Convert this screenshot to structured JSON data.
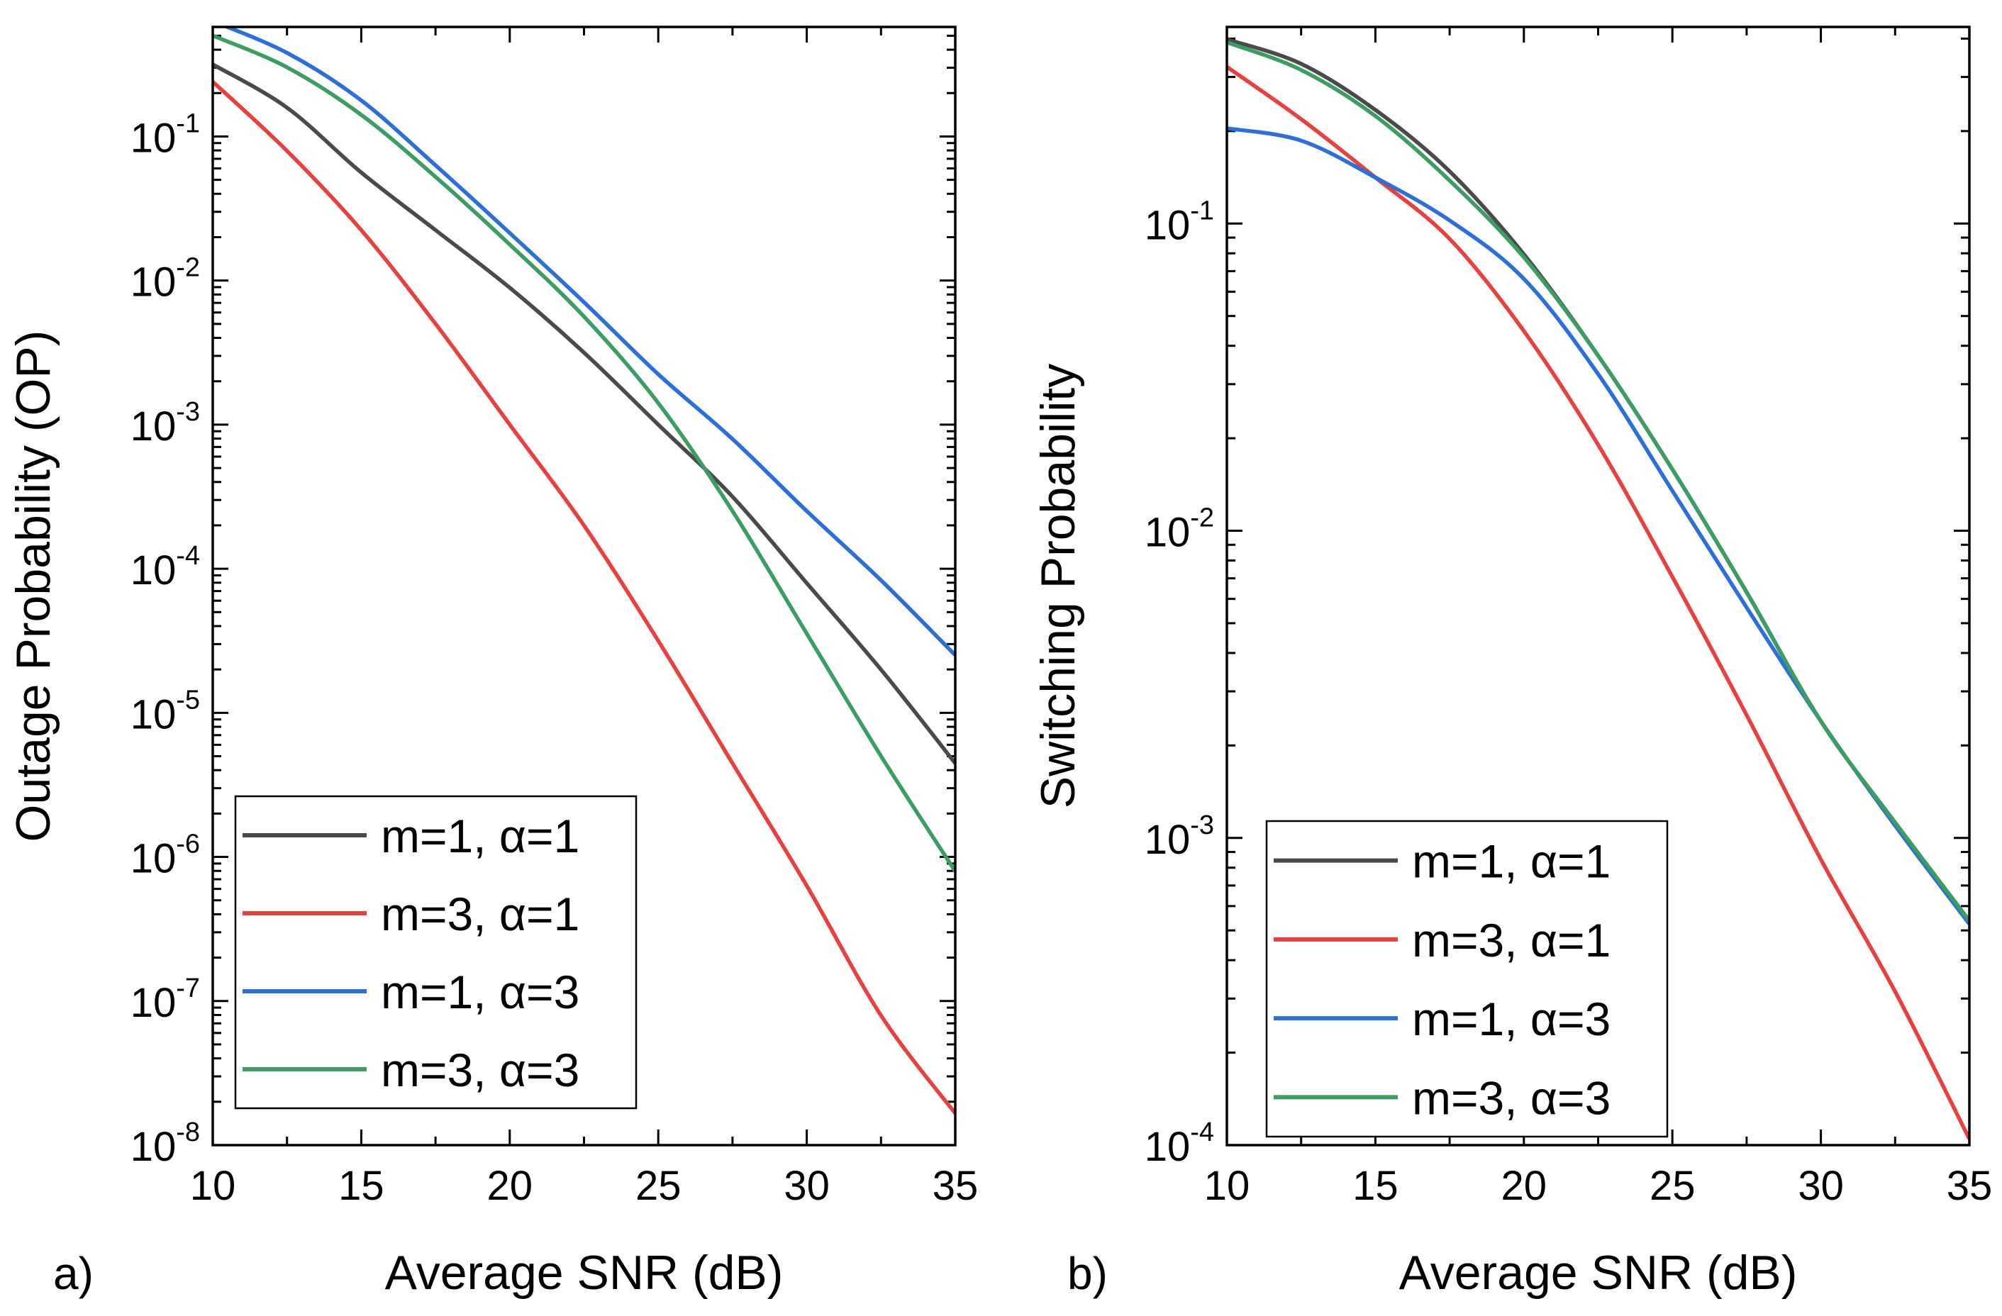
{
  "chart_data": [
    {
      "type": "line",
      "panel_label": "a)",
      "xlabel": "Average SNR (dB)",
      "ylabel": "Outage Probability (OP)",
      "yscale": "log",
      "xlim": [
        10,
        35
      ],
      "ylim_exp": [
        -8,
        -0.24
      ],
      "x_ticks": [
        "10",
        "15",
        "20",
        "25",
        "30",
        "35"
      ],
      "y_ticks": [
        {
          "base": "10",
          "exp": "-1",
          "value": -1
        },
        {
          "base": "10",
          "exp": "-2",
          "value": -2
        },
        {
          "base": "10",
          "exp": "-3",
          "value": -3
        },
        {
          "base": "10",
          "exp": "-4",
          "value": -4
        },
        {
          "base": "10",
          "exp": "-5",
          "value": -5
        },
        {
          "base": "10",
          "exp": "-6",
          "value": -6
        },
        {
          "base": "10",
          "exp": "-7",
          "value": -7
        },
        {
          "base": "10",
          "exp": "-8",
          "value": -8
        }
      ],
      "legend_position": "bottom-left",
      "x": [
        10,
        12.5,
        15,
        17.5,
        20,
        22.5,
        25,
        27.5,
        30,
        32.5,
        35
      ],
      "series": [
        {
          "name": "m=1, α=1",
          "color": "#4a4a4a",
          "log10_values": [
            -0.5,
            -0.8,
            -1.25,
            -1.65,
            -2.05,
            -2.5,
            -3.0,
            -3.5,
            -4.1,
            -4.7,
            -5.35
          ]
        },
        {
          "name": "m=3, α=1",
          "color": "#e8403f",
          "log10_values": [
            -0.62,
            -1.1,
            -1.65,
            -2.3,
            -3.0,
            -3.7,
            -4.5,
            -5.35,
            -6.2,
            -7.1,
            -7.78
          ]
        },
        {
          "name": "m=1, α=3",
          "color": "#2a6fdb",
          "log10_values": [
            -0.2,
            -0.42,
            -0.75,
            -1.2,
            -1.67,
            -2.15,
            -2.65,
            -3.1,
            -3.6,
            -4.08,
            -4.6
          ]
        },
        {
          "name": "m=3, α=3",
          "color": "#3a9e62",
          "log10_values": [
            -0.3,
            -0.52,
            -0.85,
            -1.28,
            -1.75,
            -2.25,
            -2.85,
            -3.6,
            -4.45,
            -5.3,
            -6.1
          ]
        }
      ]
    },
    {
      "type": "line",
      "panel_label": "b)",
      "xlabel": "Average SNR (dB)",
      "ylabel": "Switching Probability",
      "yscale": "log",
      "xlim": [
        10,
        35
      ],
      "ylim_exp": [
        -4,
        -0.36
      ],
      "x_ticks": [
        "10",
        "15",
        "20",
        "25",
        "30",
        "35"
      ],
      "y_ticks": [
        {
          "base": "10",
          "exp": "-1",
          "value": -1
        },
        {
          "base": "10",
          "exp": "-2",
          "value": -2
        },
        {
          "base": "10",
          "exp": "-3",
          "value": -3
        },
        {
          "base": "10",
          "exp": "-4",
          "value": -4
        }
      ],
      "legend_position": "bottom-left",
      "x": [
        10,
        12.5,
        15,
        17.5,
        20,
        22.5,
        25,
        27.5,
        30,
        32.5,
        35
      ],
      "series": [
        {
          "name": "m=1, α=1",
          "color": "#4a4a4a",
          "log10_values": [
            -0.4,
            -0.48,
            -0.63,
            -0.83,
            -1.1,
            -1.43,
            -1.8,
            -2.2,
            -2.62,
            -2.95,
            -3.27
          ]
        },
        {
          "name": "m=3, α=1",
          "color": "#e8403f",
          "log10_values": [
            -0.49,
            -0.66,
            -0.85,
            -1.05,
            -1.35,
            -1.72,
            -2.15,
            -2.6,
            -3.07,
            -3.5,
            -3.98
          ]
        },
        {
          "name": "m=1, α=3",
          "color": "#2a6fdb",
          "log10_values": [
            -0.69,
            -0.73,
            -0.85,
            -0.99,
            -1.18,
            -1.49,
            -1.87,
            -2.25,
            -2.62,
            -2.96,
            -3.28
          ]
        },
        {
          "name": "m=3, α=3",
          "color": "#3a9e62",
          "log10_values": [
            -0.41,
            -0.5,
            -0.65,
            -0.86,
            -1.11,
            -1.43,
            -1.8,
            -2.2,
            -2.62,
            -2.95,
            -3.27
          ]
        }
      ]
    }
  ]
}
